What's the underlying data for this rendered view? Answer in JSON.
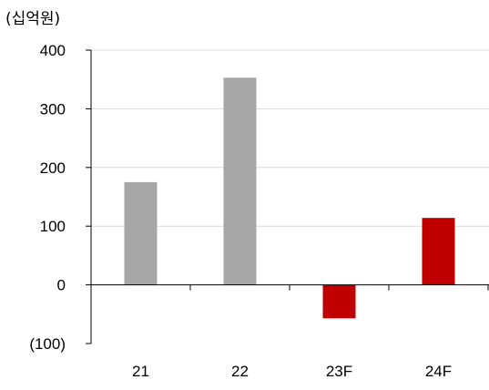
{
  "chart_data": {
    "type": "bar",
    "unit_label": "(십억원)",
    "title": "",
    "xlabel": "",
    "ylabel": "",
    "categories": [
      "21",
      "22",
      "23F",
      "24F"
    ],
    "values": [
      175,
      353,
      -57,
      114
    ],
    "bar_colors": [
      "#a6a6a6",
      "#a6a6a6",
      "#c00000",
      "#c00000"
    ],
    "ylim": [
      -100,
      400
    ],
    "yticks": [
      -100,
      0,
      100,
      200,
      300,
      400
    ],
    "ytick_labels": [
      "(100)",
      "0",
      "100",
      "200",
      "300",
      "400"
    ],
    "grid": true,
    "legend": "none"
  }
}
